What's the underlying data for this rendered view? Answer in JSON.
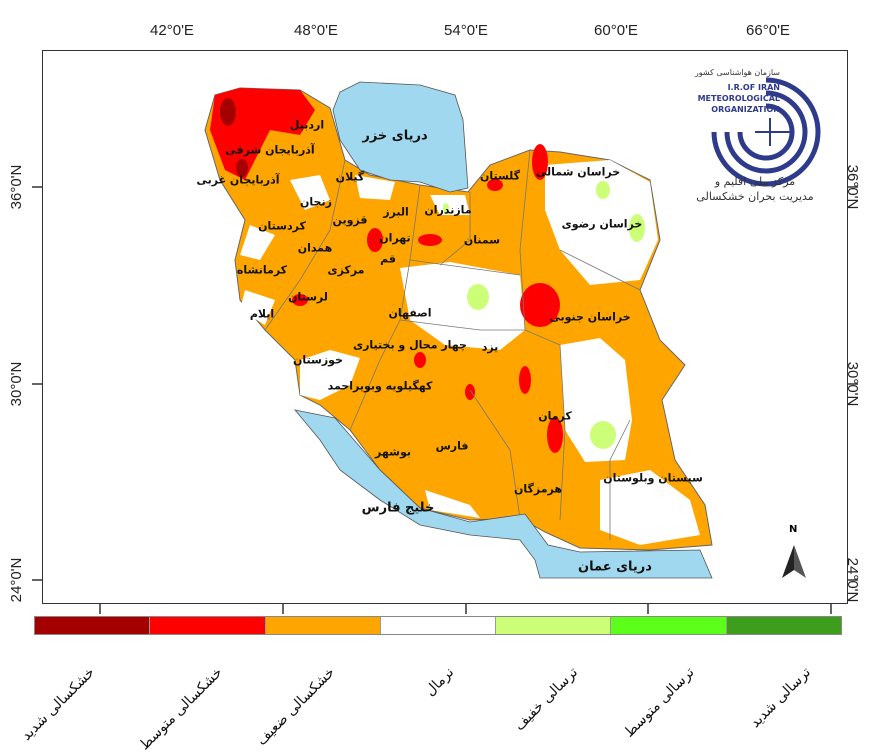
{
  "axes": {
    "longitude_labels": [
      "42°0'E",
      "48°0'E",
      "54°0'E",
      "60°0'E",
      "66°0'E"
    ],
    "latitude_labels": [
      "36°0'N",
      "30°0'N",
      "24°0'N"
    ]
  },
  "seas": {
    "caspian": "دریای خزر",
    "persian_gulf": "خلیج فارس",
    "oman_sea": "دریای عمان"
  },
  "provinces": [
    "اردبیل",
    "آذربایجان شرقی",
    "آذربایجان غربی",
    "گیلان",
    "زنجان",
    "مازندران",
    "البرز",
    "قزوین",
    "تهران",
    "کردستان",
    "همدان",
    "کرمانشاه",
    "مرکزی",
    "قم",
    "لرستان",
    "ایلام",
    "اصفهان",
    "خوزستان",
    "چهار محال و بختیاری",
    "کهگیلویه وبویراحمد",
    "بوشهر",
    "فارس",
    "یزد",
    "سمنان",
    "گلستان",
    "خراسان شمالی",
    "خراسان رضوی",
    "خراسان جنوبی",
    "کرمان",
    "هرمزگان",
    "سیستان وبلوستان"
  ],
  "logo": {
    "org_fa": "سازمان هواشناسی کشور",
    "org_en_1": "I.R.OF IRAN",
    "org_en_2": "METEOROLOGICAL",
    "org_en_3": "ORGANIZATION",
    "center_line1": "مرکز ملی اقلیم و",
    "center_line2": "مدیریت بحران خشکسالی"
  },
  "north_arrow": "N",
  "legend": [
    {
      "label": "خشکسالی شدید",
      "color": "#a50000"
    },
    {
      "label": "خشکسالی متوسط",
      "color": "#ff0000"
    },
    {
      "label": "خشکسالی ضعیف",
      "color": "#ffa500"
    },
    {
      "label": "نرمال",
      "color": "#ffffff"
    },
    {
      "label": "ترسالی خفیف",
      "color": "#ccff77"
    },
    {
      "label": "ترسالی متوسط",
      "color": "#5cff1a"
    },
    {
      "label": "ترسالی شدید",
      "color": "#3c9e1a"
    }
  ],
  "colors": {
    "sea": "#a0d8ef",
    "border": "#666666",
    "logo": "#2e3a8c"
  }
}
